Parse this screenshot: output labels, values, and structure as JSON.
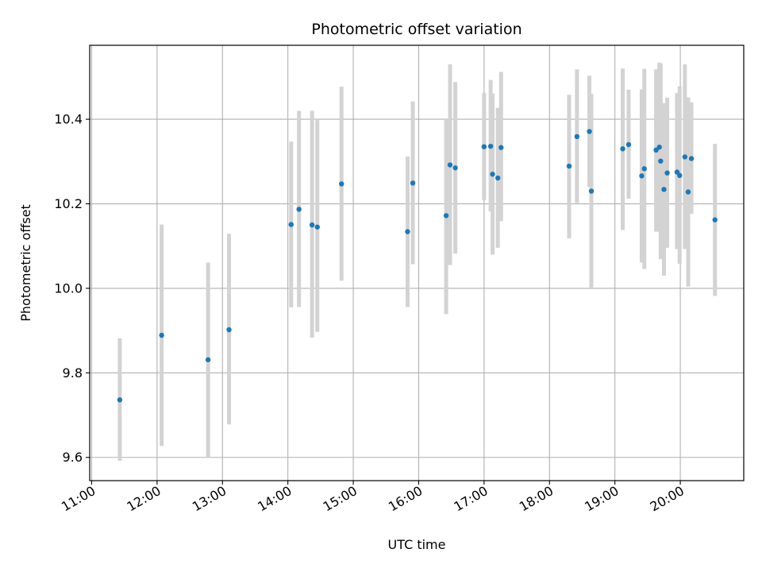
{
  "chart_data": {
    "type": "scatter",
    "title": "Photometric offset variation",
    "xlabel": "UTC time",
    "ylabel": "Photometric offset",
    "x_unit": "hours UTC",
    "xlim": [
      10.97,
      20.97
    ],
    "ylim": [
      9.545,
      10.575
    ],
    "xticks": [
      {
        "value": 11,
        "label": "11:00"
      },
      {
        "value": 12,
        "label": "12:00"
      },
      {
        "value": 13,
        "label": "13:00"
      },
      {
        "value": 14,
        "label": "14:00"
      },
      {
        "value": 15,
        "label": "15:00"
      },
      {
        "value": 16,
        "label": "16:00"
      },
      {
        "value": 17,
        "label": "17:00"
      },
      {
        "value": 18,
        "label": "18:00"
      },
      {
        "value": 19,
        "label": "19:00"
      },
      {
        "value": 20,
        "label": "20:00"
      }
    ],
    "yticks": [
      {
        "value": 9.6,
        "label": "9.6"
      },
      {
        "value": 9.8,
        "label": "9.8"
      },
      {
        "value": 10.0,
        "label": "10.0"
      },
      {
        "value": 10.2,
        "label": "10.2"
      },
      {
        "value": 10.4,
        "label": "10.4"
      }
    ],
    "grid": true,
    "colors": {
      "marker": "#1f77b4",
      "errorbar": "#d3d3d3",
      "grid": "#b0b0b0"
    },
    "points": [
      {
        "x": 11.43,
        "y": 9.736,
        "ylow": 9.592,
        "yhigh": 9.882
      },
      {
        "x": 12.07,
        "y": 9.889,
        "ylow": 9.627,
        "yhigh": 10.151
      },
      {
        "x": 12.78,
        "y": 9.831,
        "ylow": 9.6,
        "yhigh": 10.061
      },
      {
        "x": 13.1,
        "y": 9.902,
        "ylow": 9.678,
        "yhigh": 10.129
      },
      {
        "x": 14.05,
        "y": 10.151,
        "ylow": 9.955,
        "yhigh": 10.347
      },
      {
        "x": 14.17,
        "y": 10.187,
        "ylow": 9.956,
        "yhigh": 10.42
      },
      {
        "x": 14.37,
        "y": 10.15,
        "ylow": 9.883,
        "yhigh": 10.42
      },
      {
        "x": 14.45,
        "y": 10.145,
        "ylow": 9.897,
        "yhigh": 10.398
      },
      {
        "x": 14.82,
        "y": 10.247,
        "ylow": 10.018,
        "yhigh": 10.477
      },
      {
        "x": 15.83,
        "y": 10.134,
        "ylow": 9.956,
        "yhigh": 10.312
      },
      {
        "x": 15.91,
        "y": 10.249,
        "ylow": 10.057,
        "yhigh": 10.442
      },
      {
        "x": 16.42,
        "y": 10.172,
        "ylow": 9.939,
        "yhigh": 10.402
      },
      {
        "x": 16.48,
        "y": 10.292,
        "ylow": 10.055,
        "yhigh": 10.53
      },
      {
        "x": 16.56,
        "y": 10.285,
        "ylow": 10.082,
        "yhigh": 10.488
      },
      {
        "x": 17.0,
        "y": 10.335,
        "ylow": 10.209,
        "yhigh": 10.462
      },
      {
        "x": 17.1,
        "y": 10.336,
        "ylow": 10.182,
        "yhigh": 10.493
      },
      {
        "x": 17.13,
        "y": 10.27,
        "ylow": 10.08,
        "yhigh": 10.461
      },
      {
        "x": 17.21,
        "y": 10.261,
        "ylow": 10.096,
        "yhigh": 10.427
      },
      {
        "x": 17.26,
        "y": 10.333,
        "ylow": 10.159,
        "yhigh": 10.512
      },
      {
        "x": 18.3,
        "y": 10.289,
        "ylow": 10.118,
        "yhigh": 10.458
      },
      {
        "x": 18.42,
        "y": 10.359,
        "ylow": 10.202,
        "yhigh": 10.518
      },
      {
        "x": 18.61,
        "y": 10.371,
        "ylow": 10.24,
        "yhigh": 10.503
      },
      {
        "x": 18.64,
        "y": 10.23,
        "ylow": 10.002,
        "yhigh": 10.46
      },
      {
        "x": 19.12,
        "y": 10.33,
        "ylow": 10.138,
        "yhigh": 10.52
      },
      {
        "x": 19.21,
        "y": 10.34,
        "ylow": 10.212,
        "yhigh": 10.47
      },
      {
        "x": 19.41,
        "y": 10.266,
        "ylow": 10.061,
        "yhigh": 10.471
      },
      {
        "x": 19.45,
        "y": 10.283,
        "ylow": 10.046,
        "yhigh": 10.519
      },
      {
        "x": 19.63,
        "y": 10.327,
        "ylow": 10.134,
        "yhigh": 10.518
      },
      {
        "x": 19.68,
        "y": 10.334,
        "ylow": 10.134,
        "yhigh": 10.534
      },
      {
        "x": 19.7,
        "y": 10.301,
        "ylow": 10.069,
        "yhigh": 10.532
      },
      {
        "x": 19.75,
        "y": 10.234,
        "ylow": 10.03,
        "yhigh": 10.438
      },
      {
        "x": 19.8,
        "y": 10.273,
        "ylow": 10.096,
        "yhigh": 10.451
      },
      {
        "x": 19.95,
        "y": 10.275,
        "ylow": 10.093,
        "yhigh": 10.462
      },
      {
        "x": 19.99,
        "y": 10.267,
        "ylow": 10.058,
        "yhigh": 10.478
      },
      {
        "x": 20.07,
        "y": 10.311,
        "ylow": 10.093,
        "yhigh": 10.53
      },
      {
        "x": 20.12,
        "y": 10.228,
        "ylow": 10.004,
        "yhigh": 10.452
      },
      {
        "x": 20.17,
        "y": 10.307,
        "ylow": 10.176,
        "yhigh": 10.44
      },
      {
        "x": 20.53,
        "y": 10.162,
        "ylow": 9.982,
        "yhigh": 10.342
      }
    ]
  }
}
